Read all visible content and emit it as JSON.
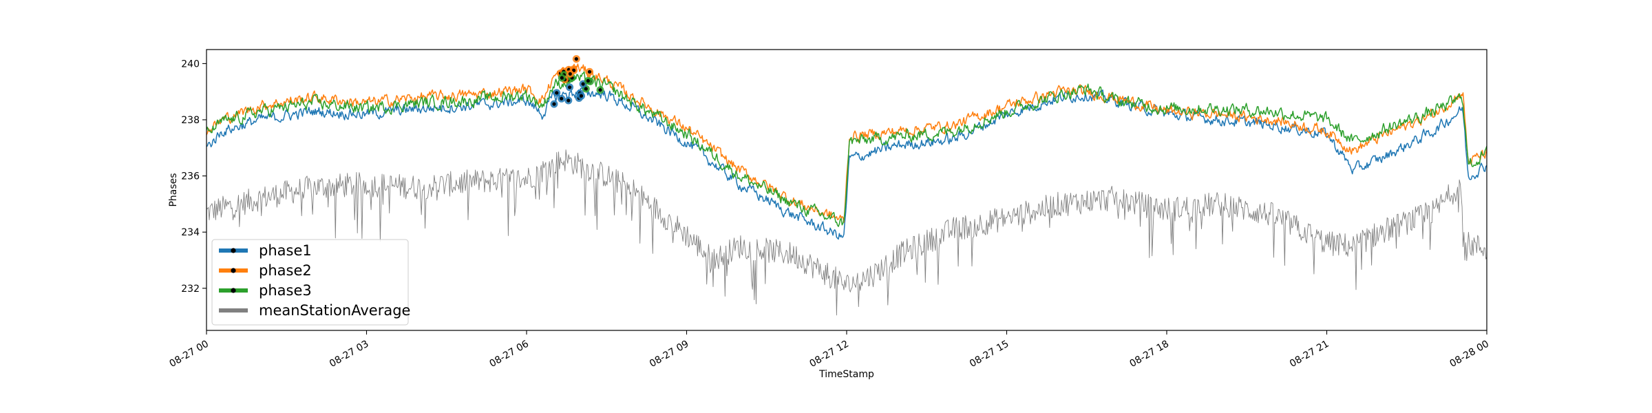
{
  "chart_data": {
    "type": "line",
    "xlabel": "TimeStamp",
    "ylabel": "Phases",
    "ylim": [
      230.5,
      240.5
    ],
    "xlim": [
      "2024-08-27 00:00",
      "2024-08-28 00:00"
    ],
    "x_ticks": [
      {
        "label": "08-27 00",
        "hour": 0
      },
      {
        "label": "08-27 03",
        "hour": 3
      },
      {
        "label": "08-27 06",
        "hour": 6
      },
      {
        "label": "08-27 09",
        "hour": 9
      },
      {
        "label": "08-27 12",
        "hour": 12
      },
      {
        "label": "08-27 15",
        "hour": 15
      },
      {
        "label": "08-27 18",
        "hour": 18
      },
      {
        "label": "08-27 21",
        "hour": 21
      },
      {
        "label": "08-28 00",
        "hour": 24
      }
    ],
    "y_ticks": [
      232,
      234,
      236,
      238,
      240
    ],
    "grid": false,
    "legend_position": "lower-left",
    "series": [
      {
        "name": "phase1",
        "color": "#1f77b4",
        "noise": 0.16,
        "hours": [
          0,
          0.3,
          1,
          2,
          3,
          4,
          5,
          6,
          6.3,
          6.5,
          7,
          7.5,
          8,
          9,
          10,
          11,
          11.95,
          12.05,
          13,
          14,
          15,
          16,
          16.5,
          17,
          18,
          19,
          20,
          21,
          21.5,
          22,
          23,
          23.55,
          23.65,
          24
        ],
        "values": [
          237.0,
          237.6,
          238.0,
          238.3,
          238.2,
          238.4,
          238.5,
          238.7,
          238.2,
          238.8,
          239.0,
          238.9,
          238.4,
          237.2,
          235.7,
          234.6,
          233.8,
          236.6,
          237.1,
          237.3,
          238.2,
          238.8,
          238.9,
          238.7,
          238.2,
          238.0,
          237.8,
          237.5,
          236.2,
          236.6,
          237.6,
          238.4,
          236.0,
          236.4
        ]
      },
      {
        "name": "phase2",
        "color": "#ff7f0e",
        "noise": 0.16,
        "hours": [
          0,
          0.3,
          1,
          2,
          3,
          4,
          5,
          6,
          6.3,
          6.5,
          6.9,
          7.5,
          8,
          9,
          10,
          11,
          11.95,
          12.05,
          13,
          14,
          15,
          16,
          16.5,
          17,
          18,
          19,
          20,
          21,
          21.5,
          22,
          23,
          23.55,
          23.65,
          24
        ],
        "values": [
          237.6,
          238.0,
          238.5,
          238.8,
          238.6,
          238.8,
          238.9,
          239.1,
          238.7,
          239.5,
          239.9,
          239.4,
          238.8,
          237.7,
          236.2,
          235.1,
          234.4,
          237.4,
          237.6,
          237.8,
          238.5,
          239.0,
          239.0,
          238.8,
          238.3,
          238.2,
          238.0,
          237.6,
          236.9,
          237.4,
          238.2,
          239.0,
          236.5,
          236.8
        ]
      },
      {
        "name": "phase3",
        "color": "#2ca02c",
        "noise": 0.18,
        "hours": [
          0,
          0.3,
          1,
          2,
          3,
          4,
          5,
          6,
          6.3,
          6.5,
          6.9,
          7.5,
          8,
          9,
          10,
          11,
          11.95,
          12.05,
          13,
          14,
          15,
          16,
          16.5,
          17,
          18,
          19,
          20,
          21,
          21.5,
          22,
          23,
          23.55,
          23.65,
          24
        ],
        "values": [
          237.5,
          237.9,
          238.3,
          238.6,
          238.4,
          238.6,
          238.7,
          238.9,
          238.5,
          239.2,
          239.5,
          239.2,
          238.6,
          237.5,
          236.0,
          235.0,
          234.3,
          237.2,
          237.4,
          237.6,
          238.3,
          238.9,
          239.1,
          238.7,
          238.4,
          238.4,
          238.3,
          238.0,
          237.2,
          237.6,
          238.3,
          238.8,
          236.4,
          236.8
        ]
      },
      {
        "name": "meanStationAverage",
        "color": "#808080",
        "noise": 0.45,
        "hours": [
          0,
          1,
          2,
          3,
          4,
          5,
          6,
          6.7,
          7.5,
          8,
          9,
          9.5,
          10,
          11,
          12,
          12.5,
          13,
          14,
          15,
          16,
          17,
          18,
          19,
          20,
          21,
          21.5,
          22,
          23,
          23.5,
          23.6,
          24
        ],
        "values": [
          234.7,
          235.2,
          235.6,
          235.7,
          235.6,
          235.8,
          235.9,
          236.6,
          236.0,
          235.5,
          233.9,
          233.0,
          233.5,
          233.2,
          232.1,
          232.5,
          233.2,
          234.1,
          234.5,
          235.0,
          235.2,
          234.8,
          235.0,
          234.6,
          233.6,
          233.5,
          234.0,
          234.7,
          235.7,
          233.6,
          233.4
        ]
      }
    ],
    "markers": {
      "center_hour": 6.95,
      "count": 26
    }
  }
}
